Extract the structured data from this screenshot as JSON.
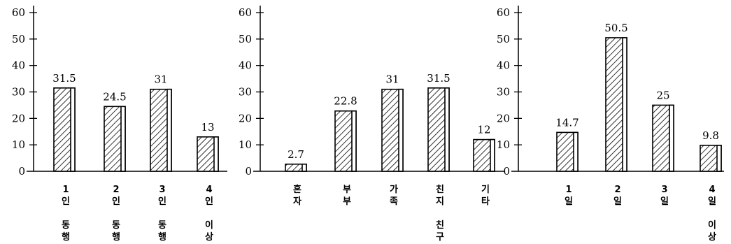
{
  "chart_data": [
    {
      "type": "bar",
      "ylim": [
        0,
        60
      ],
      "yticks": [
        "0",
        "10",
        "20",
        "30",
        "40",
        "50",
        "60"
      ],
      "categories": [
        [
          "1",
          "인",
          "",
          "동",
          "행"
        ],
        [
          "2",
          "인",
          "",
          "동",
          "행"
        ],
        [
          "3",
          "인",
          "",
          "동",
          "행"
        ],
        [
          "4",
          "인",
          "",
          "이",
          "상"
        ]
      ],
      "values": [
        31.5,
        24.5,
        31,
        13
      ],
      "value_labels": [
        "31.5",
        "24.5",
        "31",
        "13"
      ]
    },
    {
      "type": "bar",
      "ylim": [
        0,
        60
      ],
      "yticks": [
        "0",
        "10",
        "20",
        "30",
        "40",
        "50",
        "60"
      ],
      "categories": [
        [
          "혼",
          "자"
        ],
        [
          "부",
          "부"
        ],
        [
          "가",
          "족"
        ],
        [
          "친",
          "지",
          "",
          "친",
          "구"
        ],
        [
          "기",
          "타"
        ]
      ],
      "values": [
        2.7,
        22.8,
        31,
        31.5,
        12
      ],
      "value_labels": [
        "2.7",
        "22.8",
        "31",
        "31.5",
        "12"
      ]
    },
    {
      "type": "bar",
      "ylim": [
        0,
        60
      ],
      "yticks": [
        "0",
        "10",
        "20",
        "30",
        "40",
        "50",
        "60"
      ],
      "categories": [
        [
          "1",
          "일"
        ],
        [
          "2",
          "일"
        ],
        [
          "3",
          "일"
        ],
        [
          "4",
          "일",
          "",
          "이",
          "상"
        ]
      ],
      "values": [
        14.7,
        50.5,
        25,
        9.8
      ],
      "value_labels": [
        "14.7",
        "50.5",
        "25",
        "9.8"
      ]
    }
  ]
}
